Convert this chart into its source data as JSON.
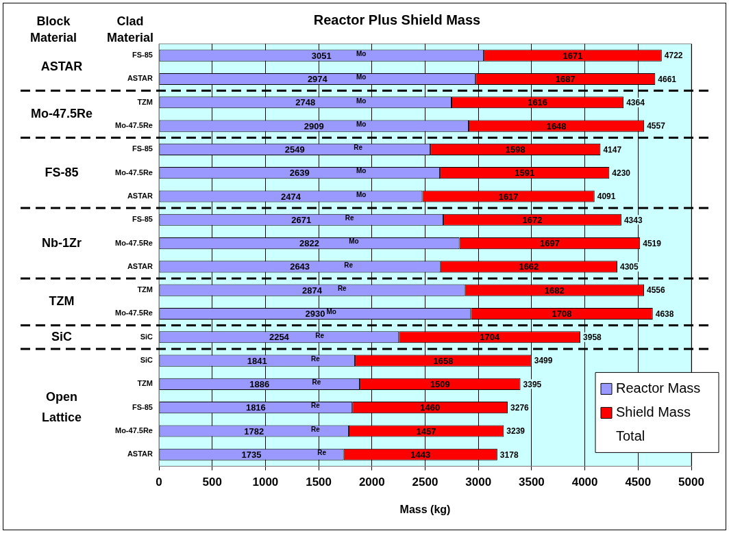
{
  "chart_data": {
    "type": "bar",
    "orientation": "horizontal",
    "stacked": true,
    "title": "Reactor Plus Shield Mass",
    "xlabel": "Mass (kg)",
    "categories": [
      "FS-85",
      "ASTAR",
      "TZM",
      "Mo-47.5Re",
      "FS-85",
      "Mo-47.5Re",
      "ASTAR",
      "FS-85",
      "Mo-47.5Re",
      "ASTAR",
      "TZM",
      "Mo-47.5Re",
      "SiC",
      "SiC",
      "TZM",
      "FS-85",
      "Mo-47.5Re",
      "ASTAR"
    ],
    "series": [
      {
        "name": "Reactor Mass",
        "color": "#9999ff",
        "values": [
          3051,
          2974,
          2748,
          2909,
          2549,
          2639,
          2474,
          2671,
          2822,
          2643,
          2874,
          2930,
          2254,
          1841,
          1886,
          1816,
          1782,
          1735
        ]
      },
      {
        "name": "Shield Mass",
        "color": "#ff0000",
        "values": [
          1671,
          1687,
          1616,
          1648,
          1598,
          1591,
          1617,
          1672,
          1697,
          1662,
          1682,
          1708,
          1704,
          1658,
          1509,
          1460,
          1457,
          1443
        ]
      }
    ],
    "totals": [
      "4722",
      "4661",
      "4364",
      "4557",
      "4147",
      "4230",
      "4091",
      "4343",
      "4519",
      "4305",
      "4556",
      "4638",
      "3958",
      "3499",
      "3395",
      "3276",
      "3239",
      "3178"
    ],
    "data_labels": true,
    "xlim": [
      0,
      5000
    ],
    "xticks": [
      0,
      500,
      1000,
      1500,
      2000,
      2500,
      3000,
      3500,
      4000,
      4500,
      5000
    ],
    "grid": "x",
    "legend": "bottom right",
    "annotations": [
      "Block Material",
      "Clad Material",
      "Total",
      "ASTAR",
      "Mo-47.5Re",
      "FS-85",
      "Nb-1Zr",
      "TZM",
      "SiC",
      "Open Lattice",
      "Mo",
      "Mo",
      "Mo",
      "Mo",
      "Re",
      "Mo",
      "Mo",
      "Re",
      "Mo",
      "Re",
      "Re",
      "Mo",
      "Re",
      "Re",
      "Re",
      "Re",
      "Re",
      "Re"
    ]
  }
}
